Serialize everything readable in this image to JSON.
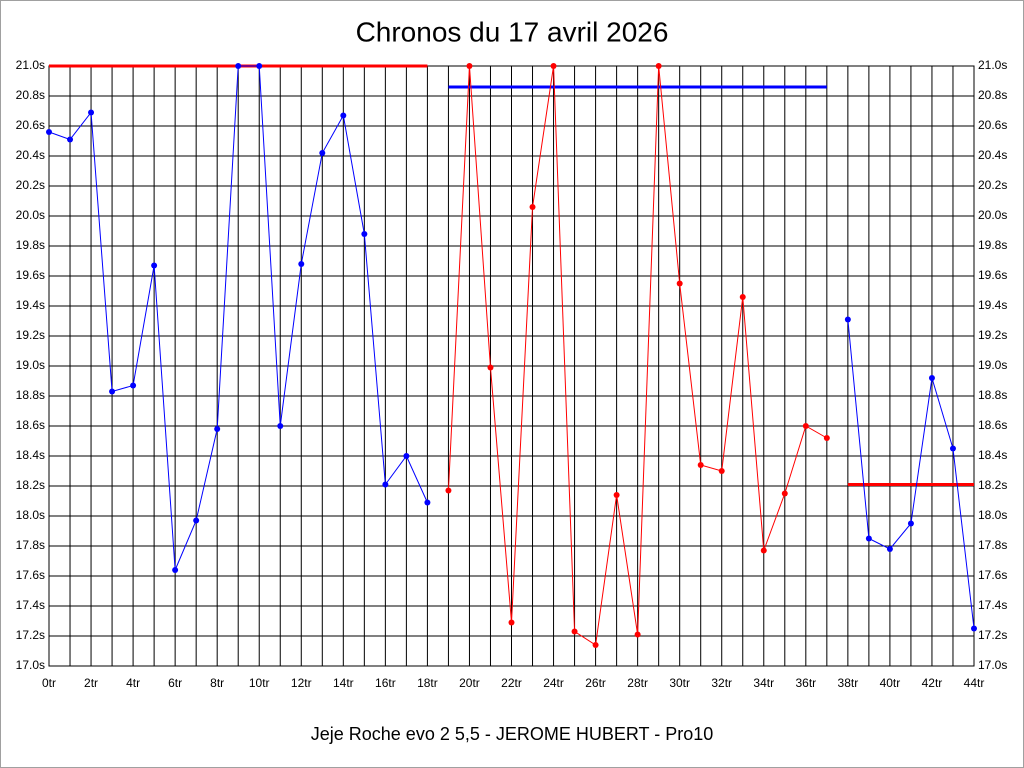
{
  "chart_data": {
    "type": "line",
    "title": "Chronos du 17 avril 2026",
    "x_label": "Jeje Roche evo 2 5,5 - JEROME HUBERT - Pro10",
    "xlim": [
      0,
      44
    ],
    "ylim": [
      17.0,
      21.0
    ],
    "xticks": [
      {
        "value": 0,
        "label": "0tr"
      },
      {
        "value": 2,
        "label": "2tr"
      },
      {
        "value": 4,
        "label": "4tr"
      },
      {
        "value": 6,
        "label": "6tr"
      },
      {
        "value": 8,
        "label": "8tr"
      },
      {
        "value": 10,
        "label": "10tr"
      },
      {
        "value": 12,
        "label": "12tr"
      },
      {
        "value": 14,
        "label": "14tr"
      },
      {
        "value": 16,
        "label": "16tr"
      },
      {
        "value": 18,
        "label": "18tr"
      },
      {
        "value": 20,
        "label": "20tr"
      },
      {
        "value": 22,
        "label": "22tr"
      },
      {
        "value": 24,
        "label": "24tr"
      },
      {
        "value": 26,
        "label": "26tr"
      },
      {
        "value": 28,
        "label": "28tr"
      },
      {
        "value": 30,
        "label": "30tr"
      },
      {
        "value": 32,
        "label": "32tr"
      },
      {
        "value": 34,
        "label": "34tr"
      },
      {
        "value": 36,
        "label": "36tr"
      },
      {
        "value": 38,
        "label": "38tr"
      },
      {
        "value": 40,
        "label": "40tr"
      },
      {
        "value": 42,
        "label": "42tr"
      },
      {
        "value": 44,
        "label": "44tr"
      }
    ],
    "xgrid": [
      1,
      3,
      5,
      7,
      9,
      11,
      13,
      15,
      17,
      19,
      21,
      23,
      25,
      27,
      29,
      31,
      33,
      35,
      37,
      39,
      41,
      43
    ],
    "yticks": [
      {
        "value": 17.0,
        "label": "17.0s"
      },
      {
        "value": 17.2,
        "label": "17.2s"
      },
      {
        "value": 17.4,
        "label": "17.4s"
      },
      {
        "value": 17.6,
        "label": "17.6s"
      },
      {
        "value": 17.8,
        "label": "17.8s"
      },
      {
        "value": 18.0,
        "label": "18.0s"
      },
      {
        "value": 18.2,
        "label": "18.2s"
      },
      {
        "value": 18.4,
        "label": "18.4s"
      },
      {
        "value": 18.6,
        "label": "18.6s"
      },
      {
        "value": 18.8,
        "label": "18.8s"
      },
      {
        "value": 19.0,
        "label": "19.0s"
      },
      {
        "value": 19.2,
        "label": "19.2s"
      },
      {
        "value": 19.4,
        "label": "19.4s"
      },
      {
        "value": 19.6,
        "label": "19.6s"
      },
      {
        "value": 19.8,
        "label": "19.8s"
      },
      {
        "value": 20.0,
        "label": "20.0s"
      },
      {
        "value": 20.2,
        "label": "20.2s"
      },
      {
        "value": 20.4,
        "label": "20.4s"
      },
      {
        "value": 20.6,
        "label": "20.6s"
      },
      {
        "value": 20.8,
        "label": "20.8s"
      },
      {
        "value": 21.0,
        "label": "21.0s"
      }
    ],
    "grid": true,
    "series": [
      {
        "color": "#0000ff",
        "x": [
          0,
          1,
          2,
          3,
          4,
          5,
          6,
          7,
          8,
          9,
          10,
          11,
          12,
          13,
          14,
          15,
          16,
          17,
          18
        ],
        "values": [
          20.56,
          20.51,
          20.69,
          18.83,
          18.87,
          19.67,
          17.64,
          17.97,
          18.58,
          21.0,
          21.0,
          18.6,
          19.68,
          20.42,
          20.67,
          19.88,
          18.21,
          18.4,
          18.09
        ]
      },
      {
        "color": "#ff0000",
        "x": [
          19,
          20,
          21,
          22,
          23,
          24,
          25,
          26,
          27,
          28,
          29,
          30,
          31,
          32,
          33,
          34,
          35,
          36,
          37
        ],
        "values": [
          18.17,
          21.0,
          18.99,
          17.29,
          20.06,
          21.0,
          17.23,
          17.14,
          18.14,
          17.21,
          21.0,
          19.55,
          18.34,
          18.3,
          19.46,
          17.77,
          18.15,
          18.6,
          18.52
        ]
      },
      {
        "color": "#0000ff",
        "x": [
          38,
          39,
          40,
          41,
          42,
          43,
          44
        ],
        "values": [
          19.31,
          17.85,
          17.78,
          17.95,
          18.92,
          18.45,
          17.25
        ]
      }
    ],
    "reference_lines": [
      {
        "color": "#ff0000",
        "x": [
          0,
          18
        ],
        "values": [
          21.0,
          21.0
        ]
      },
      {
        "color": "#0000ff",
        "x": [
          19,
          37
        ],
        "values": [
          20.86,
          20.86
        ]
      },
      {
        "color": "#ff0000",
        "x": [
          38,
          44
        ],
        "values": [
          18.21,
          18.21
        ]
      }
    ]
  }
}
